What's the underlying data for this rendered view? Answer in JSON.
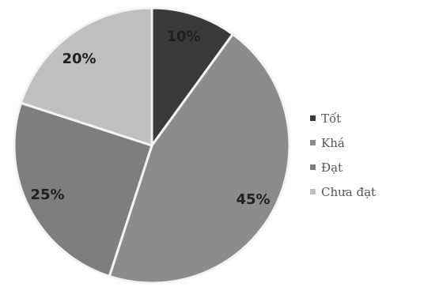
{
  "chart_data": {
    "type": "pie",
    "title": "",
    "categories": [
      "Tốt",
      "Khá",
      "Đạt",
      "Chưa đạt"
    ],
    "values": [
      10,
      45,
      25,
      20
    ],
    "labels": [
      "10%",
      "45%",
      "25%",
      "20%"
    ],
    "colors": [
      "#3a3a3a",
      "#8c8c8c",
      "#7e7e7e",
      "#bfbfbf"
    ],
    "legend": "right",
    "start_angle_deg": 0,
    "direction": "clockwise"
  }
}
